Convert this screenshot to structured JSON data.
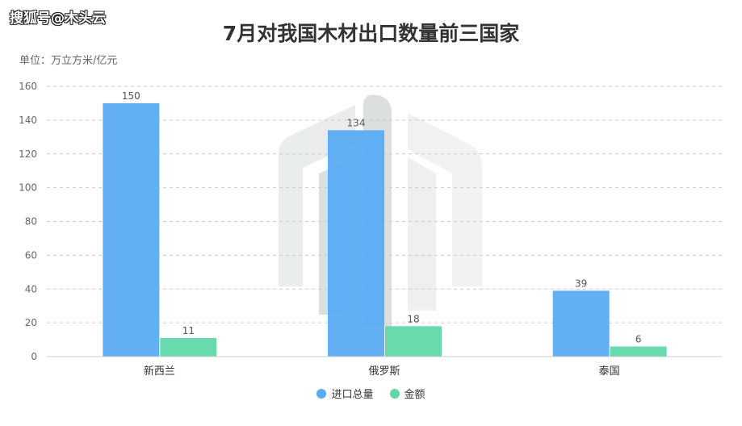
{
  "watermark": "搜狐号@木头云",
  "chart_data": {
    "type": "bar",
    "title": "7月对我国木材出口数量前三国家",
    "unit_label": "单位：万立方米/亿元",
    "categories": [
      "新西兰",
      "俄罗斯",
      "泰国"
    ],
    "series": [
      {
        "name": "进口总量",
        "values": [
          150,
          134,
          39
        ],
        "color": "#5aabf3"
      },
      {
        "name": "金额",
        "values": [
          11,
          18,
          6
        ],
        "color": "#60d8a8"
      }
    ],
    "ylim": [
      0,
      160
    ],
    "yticks": [
      0,
      20,
      40,
      60,
      80,
      100,
      120,
      140,
      160
    ],
    "grid": true,
    "legend_position": "bottom"
  }
}
